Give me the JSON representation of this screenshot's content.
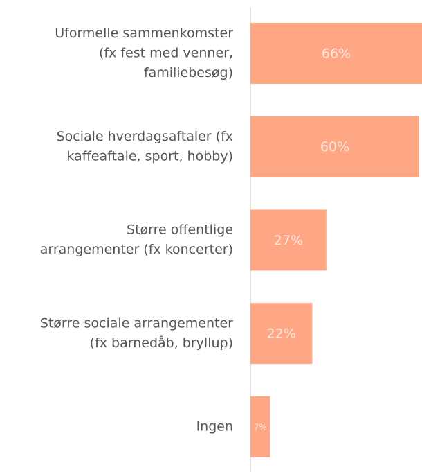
{
  "chart_data": {
    "type": "bar",
    "orientation": "horizontal",
    "categories": [
      [
        "Uformelle sammenkomster",
        "(fx fest med venner,",
        "familiebesøg)"
      ],
      [
        "Sociale hverdagsaftaler (fx",
        "kaffeaftale, sport, hobby)"
      ],
      [
        "Større offentlige",
        "arrangementer (fx koncerter)"
      ],
      [
        "Større sociale arrangementer",
        "(fx barnedåb, bryllup)"
      ],
      [
        "Ingen"
      ]
    ],
    "values": [
      66,
      60,
      27,
      22,
      7
    ],
    "value_labels": [
      "66%",
      "60%",
      "27%",
      "22%",
      "7%"
    ],
    "color": "#ffa784"
  }
}
